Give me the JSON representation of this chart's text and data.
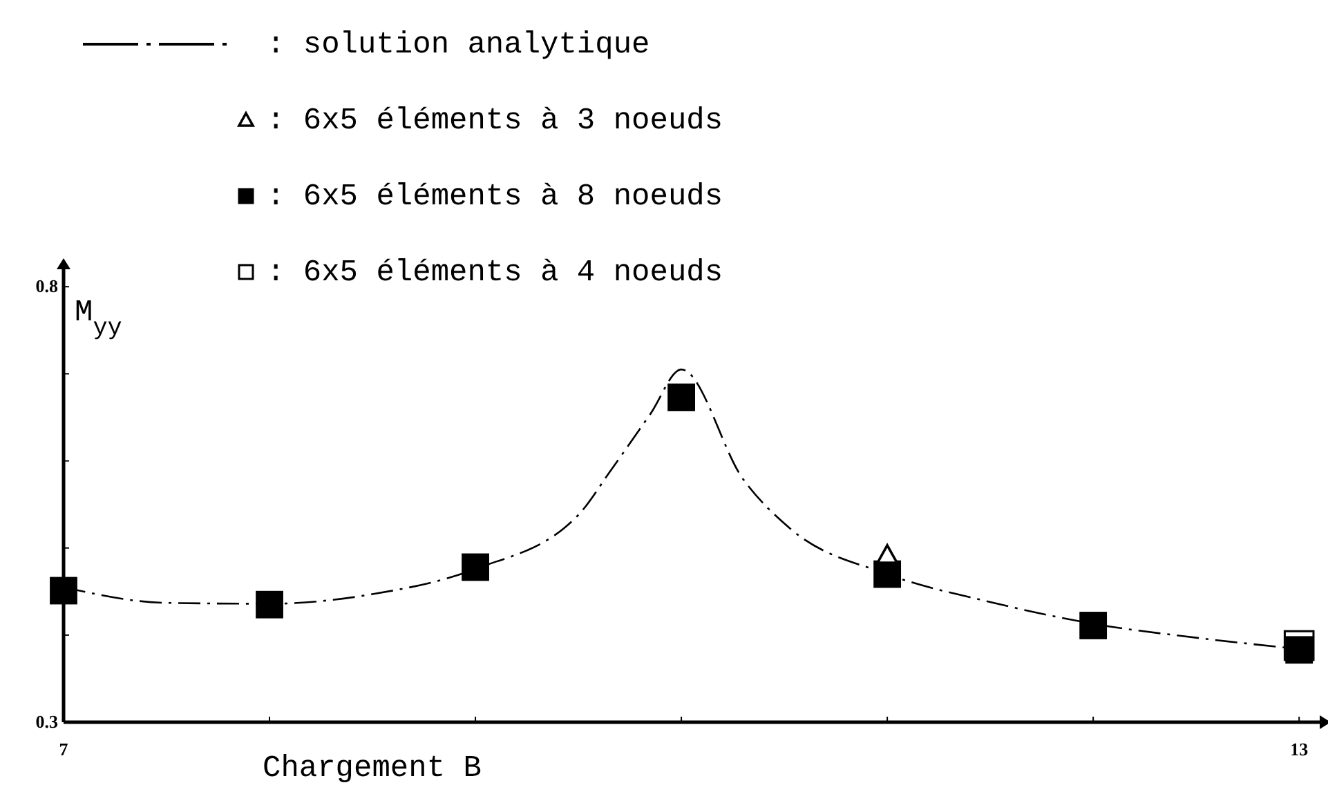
{
  "chart_data": {
    "type": "line",
    "xlabel": "Chargement B",
    "ylabel": "M$_{yy}$",
    "xlim": [
      7,
      13.1
    ],
    "ylim": [
      0.3,
      0.82
    ],
    "xticks": [
      7,
      {
        "value": 8,
        "label": null
      },
      {
        "value": 9,
        "label": null
      },
      {
        "value": 10,
        "label": null
      },
      {
        "value": 11,
        "label": null
      },
      {
        "value": 12,
        "label": null
      },
      13
    ],
    "yticks": [
      0.3,
      {
        "value": 0.4,
        "label": null
      },
      {
        "value": 0.5,
        "label": null
      },
      {
        "value": 0.6,
        "label": null
      },
      {
        "value": 0.7,
        "label": null
      },
      0.8
    ],
    "grid": false,
    "legend": "top left",
    "series": [
      {
        "name": ": solution analytique",
        "color": "#000000",
        "line_style": "dashed",
        "x": [
          7,
          7.5,
          8,
          8.5,
          9,
          9.5,
          9.66,
          9.85,
          10,
          10.3,
          10.53,
          11,
          11.5,
          12,
          12.5,
          13
        ],
        "values": [
          0.455,
          0.437,
          0.436,
          0.447,
          0.476,
          0.538,
          0.59,
          0.654,
          0.705,
          0.579,
          0.522,
          0.47,
          0.438,
          0.413,
          0.397,
          0.384
        ]
      },
      {
        "name": ": 6x5 éléments  à 3 noeuds",
        "type": "scatter",
        "color": "#ffffff",
        "marker": "triangle",
        "x": [
          11
        ],
        "values": [
          0.492
        ]
      },
      {
        "name": ": 6x5 éléments  à 8 noeuds",
        "type": "scatter",
        "color": "#000000",
        "marker": "square",
        "x": [
          7,
          8,
          9,
          10,
          11,
          12,
          13
        ],
        "values": [
          0.451,
          0.435,
          0.478,
          0.673,
          0.47,
          0.411,
          0.383
        ]
      },
      {
        "name": ": 6x5 éléments  à 4 noeuds",
        "type": "scatter",
        "color": "#ffffff",
        "marker": "square",
        "x": [
          13
        ],
        "values": [
          0.388
        ]
      }
    ]
  }
}
